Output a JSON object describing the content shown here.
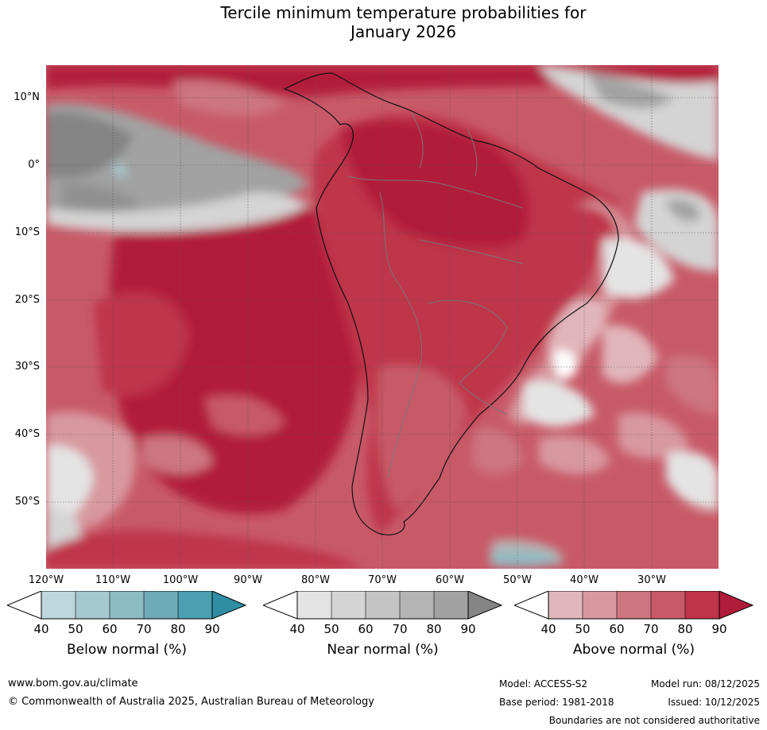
{
  "title_line1": "Tercile minimum temperature probabilities for",
  "title_line2": "January 2026",
  "lat_labels": [
    "10°N",
    "0°",
    "10°S",
    "20°S",
    "30°S",
    "40°S",
    "50°S"
  ],
  "lon_labels": [
    "120°W",
    "110°W",
    "100°W",
    "90°W",
    "80°W",
    "70°W",
    "60°W",
    "50°W",
    "40°W",
    "30°W"
  ],
  "colorbars": [
    {
      "label": "Below normal (%)",
      "ticks": [
        "40",
        "50",
        "60",
        "70",
        "80",
        "90"
      ],
      "colors": [
        "#bdd7dd",
        "#a6c9cf",
        "#8dbcc4",
        "#6eabb6",
        "#4a9fb0",
        "#2f8ea3"
      ]
    },
    {
      "label": "Near normal (%)",
      "ticks": [
        "40",
        "50",
        "60",
        "70",
        "80",
        "90"
      ],
      "colors": [
        "#e4e4e4",
        "#d4d4d4",
        "#c4c4c4",
        "#b4b4b4",
        "#a2a2a2",
        "#848484"
      ]
    },
    {
      "label": "Above normal (%)",
      "ticks": [
        "40",
        "50",
        "60",
        "70",
        "80",
        "90"
      ],
      "colors": [
        "#e1b6bb",
        "#d8989f",
        "#cd7680",
        "#c85a67",
        "#bf3448",
        "#b21c3b"
      ]
    }
  ],
  "footer": {
    "url": "www.bom.gov.au/climate",
    "copyright": "© Commonwealth of Australia 2025, Australian Bureau of Meteorology",
    "model": "Model: ACCESS-S2",
    "base_period": "Base period: 1981-2018",
    "model_run": "Model run: 08/12/2025",
    "issued": "Issued: 10/12/2025",
    "disclaimer": "Boundaries are not considered authoritative"
  }
}
